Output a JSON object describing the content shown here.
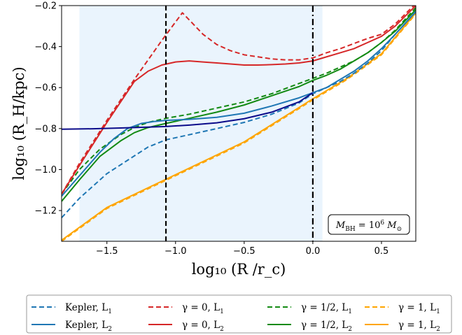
{
  "chart_data": {
    "type": "line",
    "xlabel": "log₁₀ (R /r_c)",
    "ylabel": "log₁₀ (R_H/kpc)",
    "xlim": [
      -1.83,
      0.75
    ],
    "ylim": [
      -1.35,
      -0.2
    ],
    "xticks": [
      -1.5,
      -1.0,
      -0.5,
      0.0,
      0.5
    ],
    "xtick_labels": [
      "−1.5",
      "−1.0",
      "−0.5",
      "0.0",
      "0.5"
    ],
    "yticks": [
      -1.2,
      -1.0,
      -0.8,
      -0.6,
      -0.4,
      -0.2
    ],
    "ytick_labels": [
      "−1.2",
      "−1.0",
      "−0.8",
      "−0.6",
      "−0.4",
      "−0.2"
    ],
    "shaded_region": {
      "x": [
        -1.7,
        0.07
      ],
      "color": "#eaf4fd"
    },
    "vlines": [
      {
        "x": -1.07,
        "style": "dashed",
        "color": "#000000"
      },
      {
        "x": 0.0,
        "style": "dashdot",
        "color": "#000000"
      }
    ],
    "annotation": {
      "label": "M_BH = 10⁶ M_⊙",
      "main": "M",
      "sub1": "BH",
      "mid": " = 10",
      "sup": "6",
      "m2": " M",
      "sub2": "⊙",
      "position": "bottom-right"
    },
    "grid": false,
    "legend_position": "below",
    "series": [
      {
        "name": "Kepler, L₁",
        "key": "kepler_l1",
        "color": "#1f77b4",
        "dash": "dashed",
        "x": [
          -1.83,
          -1.7,
          -1.5,
          -1.35,
          -1.2,
          -1.07,
          -0.9,
          -0.7,
          -0.5,
          -0.3,
          -0.1,
          0.0,
          0.1,
          0.2,
          0.3,
          0.4,
          0.5,
          0.6,
          0.75
        ],
        "y": [
          -1.235,
          -1.14,
          -1.02,
          -0.955,
          -0.89,
          -0.855,
          -0.83,
          -0.8,
          -0.77,
          -0.73,
          -0.675,
          -0.63,
          -0.6,
          -0.57,
          -0.53,
          -0.48,
          -0.42,
          -0.34,
          -0.23
        ]
      },
      {
        "name": "Kepler, L₂",
        "key": "kepler_l2",
        "color": "#1f77b4",
        "dash": "solid",
        "x": [
          -1.83,
          -1.7,
          -1.55,
          -1.45,
          -1.35,
          -1.25,
          -1.15,
          -1.07,
          -0.9,
          -0.7,
          -0.5,
          -0.3,
          -0.1,
          0.0,
          0.1,
          0.2,
          0.3,
          0.4,
          0.5,
          0.6,
          0.75
        ],
        "y": [
          -1.13,
          -1.03,
          -0.915,
          -0.85,
          -0.8,
          -0.775,
          -0.765,
          -0.76,
          -0.755,
          -0.745,
          -0.725,
          -0.69,
          -0.65,
          -0.625,
          -0.6,
          -0.56,
          -0.52,
          -0.47,
          -0.41,
          -0.34,
          -0.23
        ]
      },
      {
        "name": "γ = 0, L₁",
        "key": "gamma0_l1",
        "color": "#d62728",
        "dash": "dashed",
        "x": [
          -1.83,
          -1.7,
          -1.5,
          -1.3,
          -1.1,
          -1.0,
          -0.95,
          -0.9,
          -0.8,
          -0.7,
          -0.6,
          -0.5,
          -0.4,
          -0.3,
          -0.2,
          -0.1,
          0.0,
          0.1,
          0.2,
          0.3,
          0.4,
          0.5,
          0.6,
          0.75
        ],
        "y": [
          -1.12,
          -0.97,
          -0.76,
          -0.56,
          -0.37,
          -0.28,
          -0.235,
          -0.27,
          -0.34,
          -0.39,
          -0.42,
          -0.44,
          -0.45,
          -0.46,
          -0.465,
          -0.465,
          -0.455,
          -0.43,
          -0.41,
          -0.385,
          -0.36,
          -0.34,
          -0.29,
          -0.19
        ]
      },
      {
        "name": "γ = 0, L₂",
        "key": "gamma0_l2",
        "color": "#d62728",
        "dash": "solid",
        "x": [
          -1.83,
          -1.7,
          -1.5,
          -1.3,
          -1.2,
          -1.1,
          -1.0,
          -0.9,
          -0.8,
          -0.7,
          -0.6,
          -0.5,
          -0.4,
          -0.3,
          -0.2,
          -0.1,
          0.0,
          0.1,
          0.2,
          0.3,
          0.4,
          0.5,
          0.6,
          0.75
        ],
        "y": [
          -1.12,
          -0.98,
          -0.77,
          -0.57,
          -0.52,
          -0.49,
          -0.475,
          -0.47,
          -0.475,
          -0.48,
          -0.485,
          -0.49,
          -0.49,
          -0.488,
          -0.485,
          -0.48,
          -0.47,
          -0.45,
          -0.43,
          -0.41,
          -0.38,
          -0.35,
          -0.3,
          -0.2
        ]
      },
      {
        "name": "γ = 1/2, L₁",
        "key": "gamma_half_l1",
        "color": "#138a13",
        "dash": "dashed",
        "x": [
          -1.83,
          -1.7,
          -1.55,
          -1.4,
          -1.3,
          -1.2,
          -1.07,
          -0.9,
          -0.7,
          -0.5,
          -0.3,
          -0.1,
          0.0,
          0.1,
          0.2,
          0.3,
          0.4,
          0.5,
          0.6,
          0.75
        ],
        "y": [
          -1.12,
          -1.0,
          -0.9,
          -0.83,
          -0.795,
          -0.77,
          -0.75,
          -0.73,
          -0.7,
          -0.67,
          -0.63,
          -0.58,
          -0.555,
          -0.53,
          -0.5,
          -0.47,
          -0.43,
          -0.38,
          -0.32,
          -0.21
        ]
      },
      {
        "name": "γ = 1/2, L₂",
        "key": "gamma_half_l2",
        "color": "#138a13",
        "dash": "solid",
        "x": [
          -1.83,
          -1.7,
          -1.55,
          -1.4,
          -1.3,
          -1.2,
          -1.07,
          -0.9,
          -0.7,
          -0.5,
          -0.3,
          -0.1,
          0.0,
          0.1,
          0.2,
          0.3,
          0.4,
          0.5,
          0.6,
          0.75
        ],
        "y": [
          -1.155,
          -1.05,
          -0.935,
          -0.86,
          -0.82,
          -0.795,
          -0.775,
          -0.75,
          -0.72,
          -0.685,
          -0.64,
          -0.595,
          -0.565,
          -0.54,
          -0.51,
          -0.47,
          -0.43,
          -0.38,
          -0.325,
          -0.22
        ]
      },
      {
        "name": "γ = 1, L₁",
        "key": "gamma1_l1",
        "color": "#ffa500",
        "dash": "dashed",
        "x": [
          -1.83,
          -1.5,
          -1.0,
          -0.5,
          0.0,
          0.25,
          0.5,
          0.75
        ],
        "y": [
          -1.35,
          -1.19,
          -1.03,
          -0.87,
          -0.66,
          -0.56,
          -0.44,
          -0.24
        ]
      },
      {
        "name": "γ = 1, L₂",
        "key": "gamma1_l2",
        "color": "#ffa500",
        "dash": "solid",
        "x": [
          -1.83,
          -1.5,
          -1.0,
          -0.5,
          0.0,
          0.25,
          0.5,
          0.75
        ],
        "y": [
          -1.345,
          -1.185,
          -1.025,
          -0.865,
          -0.655,
          -0.555,
          -0.435,
          -0.235
        ]
      },
      {
        "name": "",
        "key": "navy_line",
        "color": "#0b0b8a",
        "dash": "solid",
        "x": [
          -1.83,
          -1.6,
          -1.4,
          -1.2,
          -1.07,
          -0.9,
          -0.7,
          -0.5,
          -0.3,
          -0.1,
          0.0
        ],
        "y": [
          -0.803,
          -0.801,
          -0.797,
          -0.793,
          -0.79,
          -0.783,
          -0.772,
          -0.752,
          -0.72,
          -0.67,
          -0.625
        ]
      }
    ]
  },
  "legend": {
    "items": [
      {
        "label_main": "Kepler, L",
        "sub": "1",
        "color": "#1f77b4",
        "dash": "dashed"
      },
      {
        "label_main": "γ = 0, L",
        "sub": "1",
        "color": "#d62728",
        "dash": "dashed"
      },
      {
        "label_main": "γ = 1/2, L",
        "sub": "1",
        "color": "#138a13",
        "dash": "dashed"
      },
      {
        "label_main": "γ = 1, L",
        "sub": "1",
        "color": "#ffa500",
        "dash": "dashed"
      },
      {
        "label_main": "Kepler, L",
        "sub": "2",
        "color": "#1f77b4",
        "dash": "solid"
      },
      {
        "label_main": "γ = 0, L",
        "sub": "2",
        "color": "#d62728",
        "dash": "solid"
      },
      {
        "label_main": "γ = 1/2, L",
        "sub": "2",
        "color": "#138a13",
        "dash": "solid"
      },
      {
        "label_main": "γ = 1, L",
        "sub": "2",
        "color": "#ffa500",
        "dash": "solid"
      }
    ]
  }
}
